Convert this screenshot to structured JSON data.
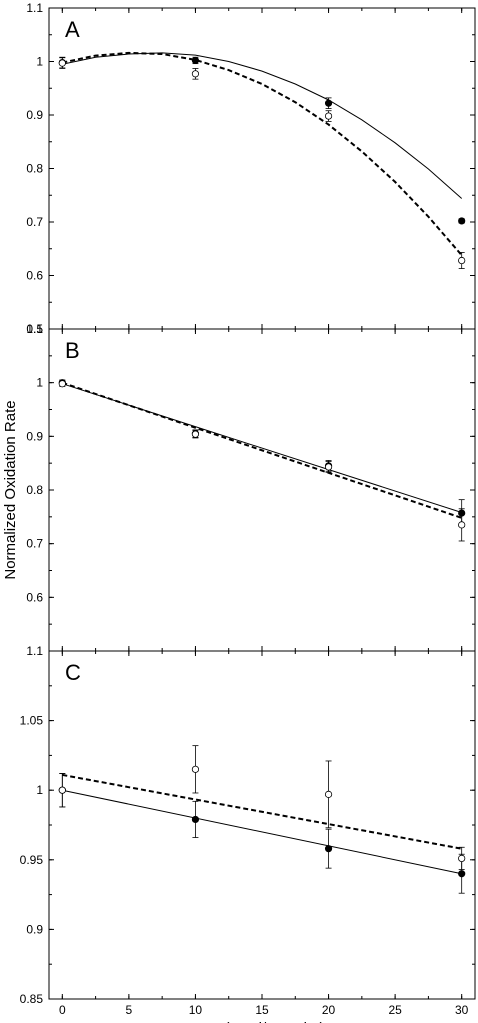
{
  "chart_data": [
    {
      "panel": "A",
      "type": "scatter",
      "x": [
        0,
        10,
        20,
        30
      ],
      "xlim": [
        -1,
        31
      ],
      "ylim": [
        0.5,
        1.1
      ],
      "yticks": [
        "0.5",
        "0.6",
        "0.7",
        "0.8",
        "0.9",
        "1",
        "1.1"
      ],
      "series": [
        {
          "marker": "filled",
          "y": [
            0.998,
            1.002,
            0.922,
            0.702
          ],
          "err": [
            0.01,
            0.006,
            0.01,
            0.004
          ],
          "fit": {
            "style": "solid",
            "points": [
              [
                0,
                0.995
              ],
              [
                2.5,
                1.008
              ],
              [
                5,
                1.014
              ],
              [
                7.5,
                1.016
              ],
              [
                10,
                1.012
              ],
              [
                12.5,
                1.0
              ],
              [
                15,
                0.982
              ],
              [
                17.5,
                0.958
              ],
              [
                20,
                0.928
              ],
              [
                22.5,
                0.891
              ],
              [
                25,
                0.848
              ],
              [
                27.5,
                0.799
              ],
              [
                30,
                0.744
              ]
            ]
          }
        },
        {
          "marker": "open",
          "y": [
            0.997,
            0.977,
            0.898,
            0.628
          ],
          "err": [
            0.01,
            0.01,
            0.01,
            0.015
          ],
          "fit": {
            "style": "dashed",
            "points": [
              [
                0,
                0.998
              ],
              [
                2.5,
                1.011
              ],
              [
                5,
                1.016
              ],
              [
                7.5,
                1.014
              ],
              [
                10,
                1.003
              ],
              [
                12.5,
                0.984
              ],
              [
                15,
                0.958
              ],
              [
                17.5,
                0.924
              ],
              [
                20,
                0.882
              ],
              [
                22.5,
                0.832
              ],
              [
                25,
                0.775
              ],
              [
                27.5,
                0.71
              ],
              [
                30,
                0.638
              ]
            ]
          }
        }
      ]
    },
    {
      "panel": "B",
      "type": "scatter",
      "x": [
        0,
        10,
        20,
        30
      ],
      "xlim": [
        -1,
        31
      ],
      "ylim": [
        0.5,
        1.1
      ],
      "yticks": [
        "0.6",
        "0.7",
        "0.8",
        "0.9",
        "1",
        "1.1"
      ],
      "series": [
        {
          "marker": "filled",
          "y": [
            1.0,
            0.905,
            0.845,
            0.757
          ],
          "err": [
            0.005,
            0.007,
            0.01,
            0.025
          ],
          "fit": {
            "style": "solid",
            "points": [
              [
                0,
                0.998
              ],
              [
                30,
                0.758
              ]
            ]
          }
        },
        {
          "marker": "open",
          "y": [
            0.998,
            0.904,
            0.843,
            0.735
          ],
          "err": [
            0.005,
            0.007,
            0.01,
            0.03
          ],
          "fit": {
            "style": "dashed",
            "points": [
              [
                0,
                1.0
              ],
              [
                30,
                0.748
              ]
            ]
          }
        }
      ]
    },
    {
      "panel": "C",
      "type": "scatter",
      "x": [
        0,
        10,
        20,
        30
      ],
      "xlim": [
        -1,
        31
      ],
      "ylim": [
        0.85,
        1.1
      ],
      "yticks": [
        "0.85",
        "0.9",
        "0.95",
        "1",
        "1.05",
        "1.1"
      ],
      "xticks": [
        "0",
        "5",
        "10",
        "15",
        "20",
        "25",
        "30"
      ],
      "xlabel": "Mn (nmol/mg mito)",
      "series": [
        {
          "marker": "filled",
          "y": [
            1.0,
            0.979,
            0.958,
            0.94
          ],
          "err": [
            0.012,
            0.013,
            0.014,
            0.014
          ],
          "fit": {
            "style": "solid",
            "points": [
              [
                0,
                1.0
              ],
              [
                30,
                0.94
              ]
            ]
          }
        },
        {
          "marker": "open",
          "y": [
            1.0,
            1.015,
            0.997,
            0.951
          ],
          "err": [
            0.012,
            0.017,
            0.024,
            0.008
          ],
          "fit": {
            "style": "dashed",
            "points": [
              [
                0,
                1.011
              ],
              [
                30,
                0.958
              ]
            ]
          }
        }
      ]
    }
  ],
  "ylabel": "Normalized Oxidation Rate"
}
